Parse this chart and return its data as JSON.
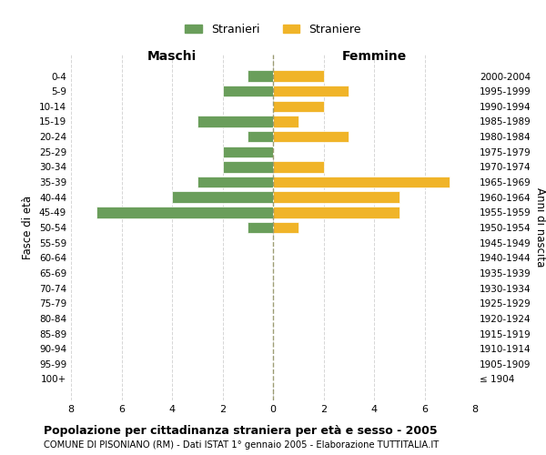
{
  "age_groups": [
    "100+",
    "95-99",
    "90-94",
    "85-89",
    "80-84",
    "75-79",
    "70-74",
    "65-69",
    "60-64",
    "55-59",
    "50-54",
    "45-49",
    "40-44",
    "35-39",
    "30-34",
    "25-29",
    "20-24",
    "15-19",
    "10-14",
    "5-9",
    "0-4"
  ],
  "birth_years": [
    "≤ 1904",
    "1905-1909",
    "1910-1914",
    "1915-1919",
    "1920-1924",
    "1925-1929",
    "1930-1934",
    "1935-1939",
    "1940-1944",
    "1945-1949",
    "1950-1954",
    "1955-1959",
    "1960-1964",
    "1965-1969",
    "1970-1974",
    "1975-1979",
    "1980-1984",
    "1985-1989",
    "1990-1994",
    "1995-1999",
    "2000-2004"
  ],
  "maschi": [
    0,
    0,
    0,
    0,
    0,
    0,
    0,
    0,
    0,
    0,
    1,
    7,
    4,
    3,
    2,
    2,
    1,
    3,
    0,
    2,
    1
  ],
  "femmine": [
    0,
    0,
    0,
    0,
    0,
    0,
    0,
    0,
    0,
    0,
    1,
    5,
    5,
    7,
    2,
    0,
    3,
    1,
    2,
    3,
    2
  ],
  "color_maschi": "#6a9e5b",
  "color_femmine": "#f0b429",
  "title_main": "Popolazione per cittadinanza straniera per età e sesso - 2005",
  "subtitle": "COMUNE DI PISONIANO (RM) - Dati ISTAT 1° gennaio 2005 - Elaborazione TUTTITALIA.IT",
  "ylabel_left": "Fasce di età",
  "ylabel_right": "Anni di nascita",
  "xlabel_maschi": "Maschi",
  "xlabel_femmine": "Femmine",
  "legend_maschi": "Stranieri",
  "legend_femmine": "Straniere",
  "xlim": 8,
  "background_color": "#ffffff",
  "grid_color": "#cccccc"
}
